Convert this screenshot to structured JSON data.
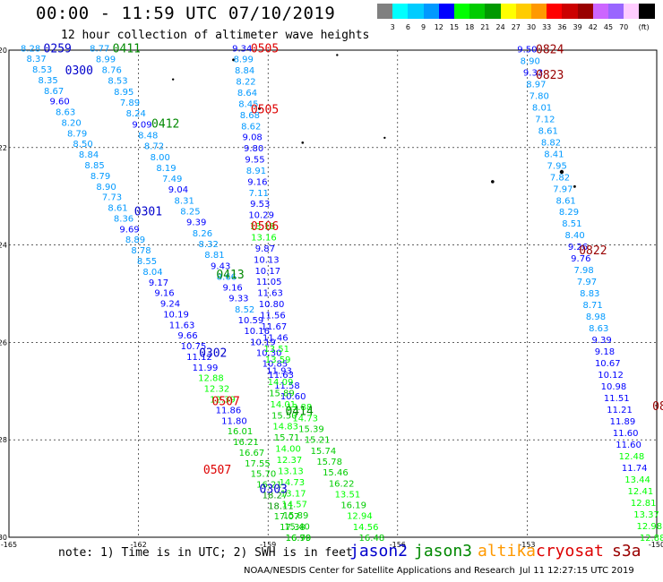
{
  "header": {
    "title": "00:00 - 11:59 UTC 07/10/2019",
    "subtitle": "12 hour collection of altimeter wave heights"
  },
  "colorbar": {
    "colors": [
      "#808080",
      "#00ffff",
      "#00ccff",
      "#0099ff",
      "#0000ff",
      "#00ff00",
      "#00cc00",
      "#009900",
      "#ffff00",
      "#ffcc00",
      "#ff9900",
      "#ff0000",
      "#cc0000",
      "#990000",
      "#cc66ff",
      "#9966ff",
      "#ffccff",
      "#000000"
    ],
    "labels": [
      "3",
      "6",
      "9",
      "12",
      "15",
      "18",
      "21",
      "24",
      "27",
      "30",
      "33",
      "36",
      "39",
      "42",
      "45",
      "70"
    ],
    "unit": "(ft)"
  },
  "map": {
    "lon_ticks": [
      "-165",
      "-162",
      "-159",
      "-156",
      "-153",
      "-150"
    ],
    "lat_ticks": [
      "-20",
      "-22",
      "-24",
      "-26",
      "-28",
      "-30"
    ]
  },
  "satellites": [
    {
      "name": "jason2",
      "color": "#0000cc"
    },
    {
      "name": "jason3",
      "color": "#008800"
    },
    {
      "name": "altika",
      "color": "#ff9900"
    },
    {
      "name": "cryosat",
      "color": "#dd0000"
    },
    {
      "name": "s3a",
      "color": "#990000"
    }
  ],
  "passes": [
    {
      "time": "0259",
      "sat": "jason2",
      "lon": -164.2,
      "lat": -19.95
    },
    {
      "time": "0411",
      "sat": "jason3",
      "lon": -162.6,
      "lat": -19.95
    },
    {
      "time": "0300",
      "sat": "jason2",
      "lon": -163.7,
      "lat": -20.4
    },
    {
      "time": "0412",
      "sat": "jason3",
      "lon": -161.7,
      "lat": -21.5
    },
    {
      "time": "0301",
      "sat": "jason2",
      "lon": -162.1,
      "lat": -23.3
    },
    {
      "time": "0413",
      "sat": "jason3",
      "lon": -160.2,
      "lat": -24.6
    },
    {
      "time": "0302",
      "sat": "jason2",
      "lon": -160.6,
      "lat": -26.2
    },
    {
      "time": "0414",
      "sat": "jason3",
      "lon": -158.6,
      "lat": -27.4
    },
    {
      "time": "0303",
      "sat": "jason2",
      "lon": -159.2,
      "lat": -29.0
    },
    {
      "time": "0505",
      "sat": "cryosat",
      "lon": -159.4,
      "lat": -19.95
    },
    {
      "time": "0505",
      "sat": "cryosat",
      "lon": -159.4,
      "lat": -21.2
    },
    {
      "time": "0506",
      "sat": "cryosat",
      "lon": -159.4,
      "lat": -23.6
    },
    {
      "time": "0507",
      "sat": "cryosat",
      "lon": -160.3,
      "lat": -27.2
    },
    {
      "time": "0507",
      "sat": "cryosat",
      "lon": -160.5,
      "lat": -28.6
    },
    {
      "time": "0824",
      "sat": "s3a",
      "lon": -152.8,
      "lat": -19.97
    },
    {
      "time": "0823",
      "sat": "s3a",
      "lon": -152.8,
      "lat": -20.5
    },
    {
      "time": "0822",
      "sat": "s3a",
      "lon": -151.8,
      "lat": -24.1
    },
    {
      "time": "08",
      "sat": "s3a",
      "lon": -150.1,
      "lat": -27.3
    }
  ],
  "tracks": [
    {
      "sat": "jason2",
      "lon_start": -164.5,
      "lon_end": -158.3,
      "lat_start": -19.95,
      "lat_end": -30.0,
      "values": [
        "8.28",
        "8.37",
        "8.53",
        "8.35",
        "8.67",
        "9.60",
        "8.63",
        "8.20",
        "8.79",
        "8.50",
        "8.84",
        "8.85",
        "8.79",
        "8.90",
        "7.73",
        "8.61",
        "8.36",
        "9.69",
        "8.89",
        "8.78",
        "8.55",
        "8.04",
        "9.17",
        "9.16",
        "9.24",
        "10.19",
        "11.63",
        "9.66",
        "10.75",
        "11.12",
        "11.99",
        "12.88",
        "12.32",
        "12.39",
        "11.86",
        "11.80",
        "16.01",
        "16.21",
        "16.67",
        "17.55",
        "15.70",
        "16.21",
        "18.27",
        "18.11",
        "17.07",
        "17.38",
        "16.90"
      ]
    },
    {
      "sat": "jason3",
      "lon_start": -162.9,
      "lon_end": -156.6,
      "lat_start": -19.95,
      "lat_end": -30.0,
      "values": [
        "8.77",
        "8.99",
        "8.76",
        "8.53",
        "8.95",
        "7.89",
        "8.24",
        "9.09",
        "8.48",
        "8.72",
        "8.00",
        "8.19",
        "7.49",
        "9.04",
        "8.31",
        "8.25",
        "9.39",
        "8.26",
        "8.32",
        "8.81",
        "9.43",
        "8.66",
        "9.16",
        "9.33",
        "8.52",
        "10.59",
        "10.16",
        "10.19",
        "10.30",
        "10.85",
        "11.63",
        "11.58",
        "10.60",
        "13.88",
        "14.73",
        "15.39",
        "15.21",
        "15.74",
        "15.78",
        "15.46",
        "16.22",
        "13.51",
        "16.19",
        "12.94",
        "14.56",
        "16.48"
      ]
    },
    {
      "sat": "cryosat",
      "lon_start": -159.6,
      "lon_end": -158.3,
      "lat_start": -19.95,
      "lat_end": -30.0,
      "values": [
        "9.34",
        "8.99",
        "8.84",
        "8.22",
        "8.64",
        "8.45",
        "8.68",
        "8.62",
        "9.08",
        "9.80",
        "9.55",
        "8.91",
        "9.16",
        "7.11",
        "9.53",
        "10.29",
        "13.18",
        "13.16",
        "9.87",
        "10.13",
        "10.17",
        "11.05",
        "11.63",
        "10.80",
        "11.56",
        "11.67",
        "11.46",
        "13.51",
        "13.59",
        "11.93",
        "14.09",
        "15.89",
        "14.01",
        "15.50",
        "14.83",
        "15.71",
        "14.00",
        "12.37",
        "13.13",
        "14.73",
        "13.17",
        "14.57",
        "15.89",
        "15.40",
        "16.79"
      ]
    },
    {
      "sat": "s3a",
      "lon_start": -153.0,
      "lon_end": -150.1,
      "lat_start": -19.97,
      "lat_end": -30.0,
      "values": [
        "9.50",
        "8.90",
        "9.33",
        "8.97",
        "7.80",
        "8.01",
        "7.12",
        "8.61",
        "8.82",
        "8.41",
        "7.95",
        "7.82",
        "7.97",
        "8.61",
        "8.29",
        "8.51",
        "8.40",
        "9.26",
        "9.76",
        "7.98",
        "7.97",
        "8.83",
        "8.71",
        "8.98",
        "8.63",
        "9.39",
        "9.18",
        "10.67",
        "10.12",
        "10.98",
        "11.51",
        "11.21",
        "11.89",
        "11.60",
        "11.60",
        "12.48",
        "11.74",
        "13.44",
        "12.41",
        "12.81",
        "13.37",
        "12.98",
        "12.88"
      ]
    }
  ],
  "footer": {
    "note": "note: 1) Time is in UTC; 2) SWH is in feet",
    "credit": "NOAA/NESDIS Center for Satellite Applications and Research",
    "timestamp": "Jul 11 12:27:15 UTC 2019"
  }
}
